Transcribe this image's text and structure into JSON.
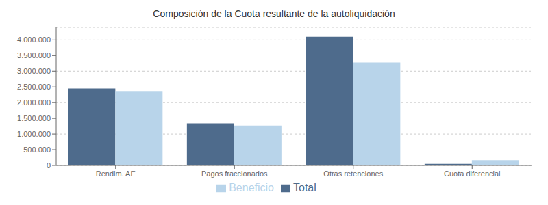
{
  "chart_data": {
    "type": "bar",
    "title": "Composición de la Cuota resultante de la autoliquidación",
    "categories": [
      "Rendim. AE",
      "Pagos fraccionados",
      "Otras retenciones",
      "Cuota diferencial"
    ],
    "series": [
      {
        "name": "Total",
        "color": "#4e6b8c",
        "values": [
          2450000,
          1340000,
          4100000,
          50000
        ]
      },
      {
        "name": "Beneficio",
        "color": "#b8d4ea",
        "values": [
          2370000,
          1270000,
          3280000,
          170000
        ]
      }
    ],
    "ylim": [
      0,
      4400000
    ],
    "yticks": [
      0,
      {
        "value": 500000,
        "label": "500.000"
      },
      {
        "value": 1000000,
        "label": "1.000.000"
      },
      {
        "value": 1500000,
        "label": "1.500.000"
      },
      {
        "value": 2000000,
        "label": "2.000.000"
      },
      {
        "value": 2500000,
        "label": "2.500.000"
      },
      {
        "value": 3000000,
        "label": "3.000.000"
      },
      {
        "value": 3500000,
        "label": "3.500.000"
      },
      {
        "value": 4000000,
        "label": "4.000.000"
      }
    ],
    "grid": true,
    "legend": "bottom"
  }
}
